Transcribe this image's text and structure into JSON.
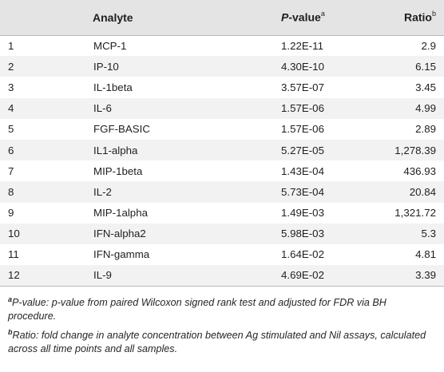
{
  "header": {
    "col1": "",
    "analyte": "Analyte",
    "pvalue_prefix": "P",
    "pvalue_suffix": "-value",
    "pvalue_mark": "a",
    "ratio": "Ratio",
    "ratio_mark": "b"
  },
  "rows": [
    {
      "n": "1",
      "analyte": "MCP-1",
      "pvalue": "1.22E-11",
      "ratio": "2.9"
    },
    {
      "n": "2",
      "analyte": "IP-10",
      "pvalue": "4.30E-10",
      "ratio": "6.15"
    },
    {
      "n": "3",
      "analyte": "IL-1beta",
      "pvalue": "3.57E-07",
      "ratio": "3.45"
    },
    {
      "n": "4",
      "analyte": "IL-6",
      "pvalue": "1.57E-06",
      "ratio": "4.99"
    },
    {
      "n": "5",
      "analyte": "FGF-BASIC",
      "pvalue": "1.57E-06",
      "ratio": "2.89"
    },
    {
      "n": "6",
      "analyte": "IL1-alpha",
      "pvalue": "5.27E-05",
      "ratio": "1,278.39"
    },
    {
      "n": "7",
      "analyte": "MIP-1beta",
      "pvalue": "1.43E-04",
      "ratio": "436.93"
    },
    {
      "n": "8",
      "analyte": "IL-2",
      "pvalue": "5.73E-04",
      "ratio": "20.84"
    },
    {
      "n": "9",
      "analyte": "MIP-1alpha",
      "pvalue": "1.49E-03",
      "ratio": "1,321.72"
    },
    {
      "n": "10",
      "analyte": "IFN-alpha2",
      "pvalue": "5.98E-03",
      "ratio": "5.3"
    },
    {
      "n": "11",
      "analyte": "IFN-gamma",
      "pvalue": "1.64E-02",
      "ratio": "4.81"
    },
    {
      "n": "12",
      "analyte": "IL-9",
      "pvalue": "4.69E-02",
      "ratio": "3.39"
    }
  ],
  "footnotes": [
    {
      "mark": "a",
      "text": "P-value: p-value from paired Wilcoxon signed rank test and adjusted for FDR via BH procedure."
    },
    {
      "mark": "b",
      "text": "Ratio: fold change in analyte concentration between Ag stimulated and Nil assays, calculated across all time points and all samples."
    }
  ]
}
